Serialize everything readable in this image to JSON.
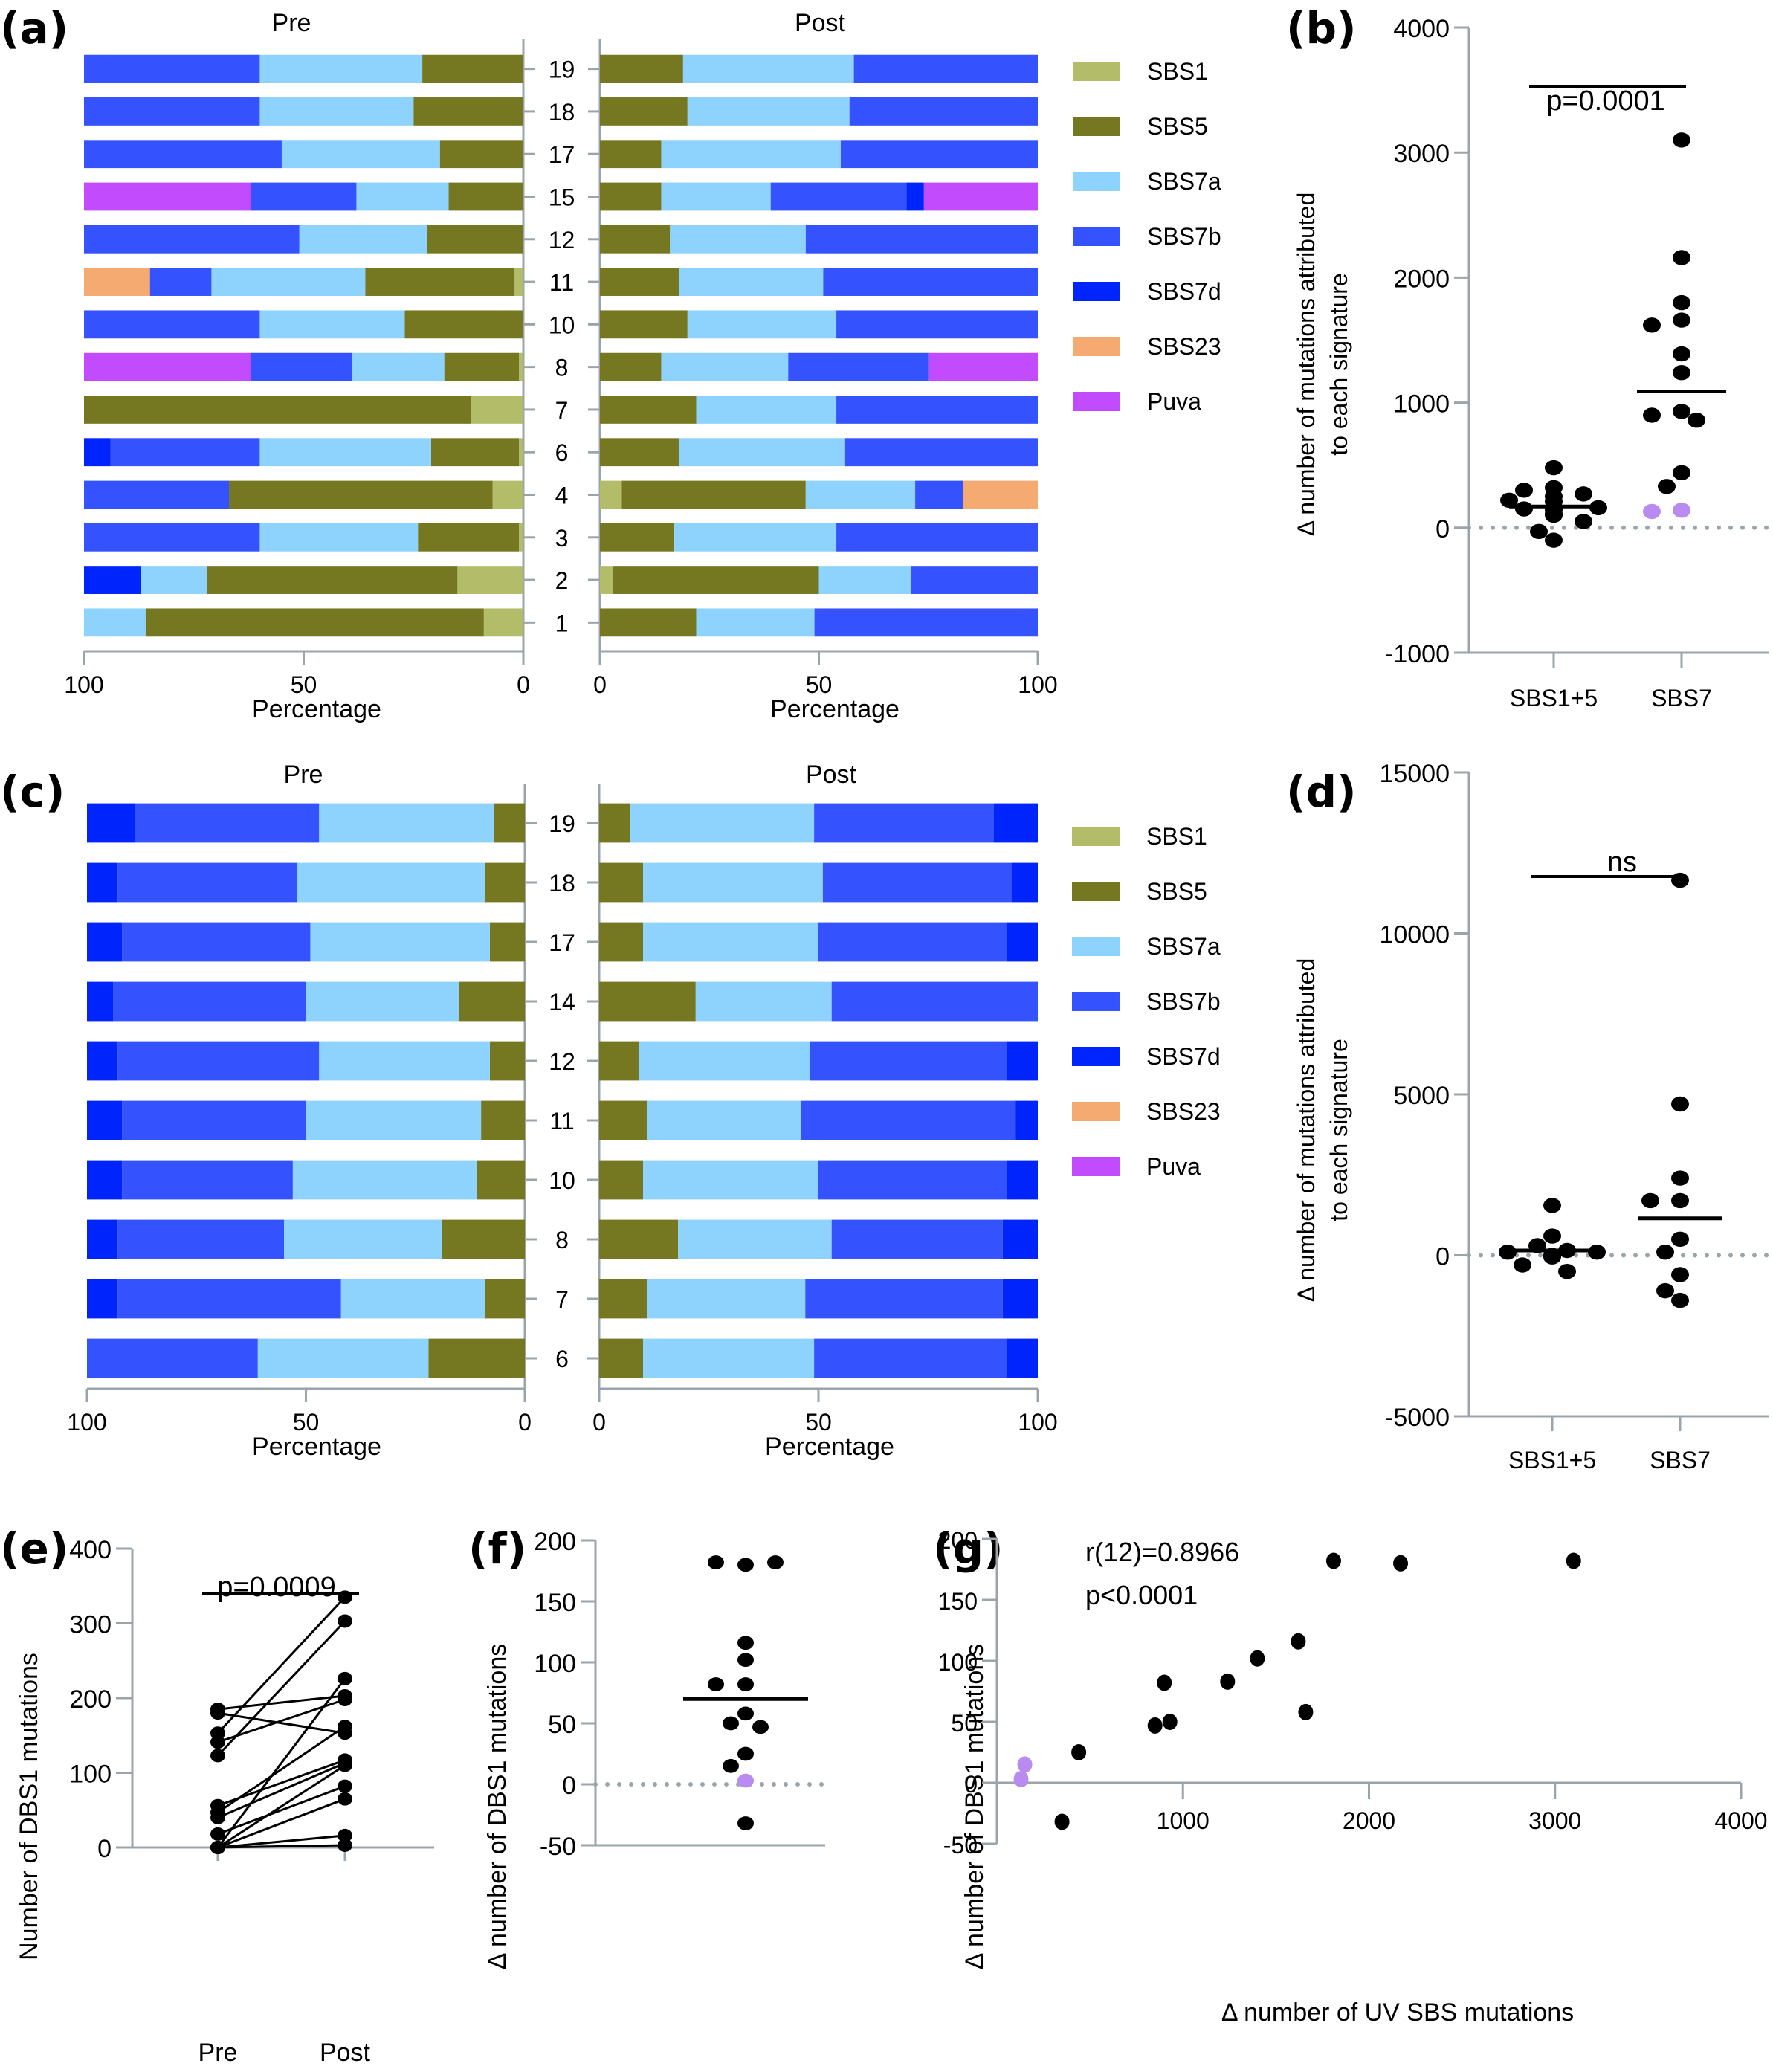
{
  "figure": {
    "panel_labels": [
      "(a)",
      "(b)",
      "(c)",
      "(d)",
      "(e)",
      "(f)",
      "(g)"
    ]
  },
  "colors": {
    "SBS1": "#b3bd69",
    "SBS5": "#767821",
    "SBS7a": "#8dd3fd",
    "SBS7b": "#3453fe",
    "SBS7d": "#0025fc",
    "SBS23": "#f5aa72",
    "Puva": "#c24cfd",
    "axis": "#9aa5ab",
    "point": "#000000",
    "highlight_point": "#b98af0"
  },
  "chart_data": [
    {
      "id": "a",
      "type": "bar",
      "orientation": "horizontal-stacked",
      "title_left": "Pre",
      "title_right": "Post",
      "xlabel": "Percentage",
      "xlim": [
        0,
        100
      ],
      "xticks_left": [
        "100",
        "50",
        "0"
      ],
      "xticks_right": [
        "0",
        "50",
        "100"
      ],
      "legend": [
        "SBS1",
        "SBS5",
        "SBS7a",
        "SBS7b",
        "SBS7d",
        "SBS23",
        "Puva"
      ],
      "legend_position": "right",
      "categories": [
        "19",
        "18",
        "17",
        "15",
        "12",
        "11",
        "10",
        "8",
        "7",
        "6",
        "4",
        "3",
        "2",
        "1"
      ],
      "pre": [
        {
          "SBS5": 23,
          "SBS7a": 37,
          "SBS7b": 40
        },
        {
          "SBS5": 25,
          "SBS7a": 35,
          "SBS7b": 40
        },
        {
          "SBS5": 19,
          "SBS7a": 36,
          "SBS7b": 45
        },
        {
          "SBS5": 17,
          "SBS7a": 21,
          "SBS7b": 24,
          "Puva": 38
        },
        {
          "SBS5": 22,
          "SBS7a": 29,
          "SBS7b": 49
        },
        {
          "SBS1": 2,
          "SBS5": 34,
          "SBS7a": 35,
          "SBS7b": 14,
          "SBS23": 15
        },
        {
          "SBS5": 27,
          "SBS7a": 33,
          "SBS7b": 40
        },
        {
          "SBS1": 1,
          "SBS5": 17,
          "SBS7a": 21,
          "SBS7b": 23,
          "Puva": 38
        },
        {
          "SBS1": 12,
          "SBS5": 88
        },
        {
          "SBS1": 1,
          "SBS5": 20,
          "SBS7a": 39,
          "SBS7b": 34,
          "SBS7d": 6
        },
        {
          "SBS1": 7,
          "SBS5": 60,
          "SBS7b": 33
        },
        {
          "SBS1": 1,
          "SBS5": 23,
          "SBS7a": 36,
          "SBS7b": 40
        },
        {
          "SBS1": 15,
          "SBS5": 57,
          "SBS7a": 15,
          "SBS7d": 13
        },
        {
          "SBS1": 9,
          "SBS5": 77,
          "SBS7a": 14
        }
      ],
      "post": [
        {
          "SBS5": 19,
          "SBS7a": 39,
          "SBS7b": 42
        },
        {
          "SBS5": 20,
          "SBS7a": 37,
          "SBS7b": 43
        },
        {
          "SBS5": 14,
          "SBS7a": 41,
          "SBS7b": 45
        },
        {
          "SBS5": 14,
          "SBS7a": 25,
          "SBS7b": 31,
          "SBS7d": 4,
          "Puva": 26
        },
        {
          "SBS5": 16,
          "SBS7a": 31,
          "SBS7b": 53
        },
        {
          "SBS5": 18,
          "SBS7a": 33,
          "SBS7b": 49
        },
        {
          "SBS5": 20,
          "SBS7a": 34,
          "SBS7b": 46
        },
        {
          "SBS5": 14,
          "SBS7a": 29,
          "SBS7b": 32,
          "Puva": 25
        },
        {
          "SBS5": 22,
          "SBS7a": 32,
          "SBS7b": 46
        },
        {
          "SBS5": 18,
          "SBS7a": 38,
          "SBS7b": 44
        },
        {
          "SBS1": 5,
          "SBS5": 42,
          "SBS7a": 25,
          "SBS7b": 11,
          "SBS23": 17
        },
        {
          "SBS5": 17,
          "SBS7a": 37,
          "SBS7b": 46
        },
        {
          "SBS1": 3,
          "SBS5": 47,
          "SBS7a": 21,
          "SBS7b": 29
        },
        {
          "SBS5": 22,
          "SBS7a": 27,
          "SBS7b": 51
        }
      ]
    },
    {
      "id": "b",
      "type": "scatter",
      "subtype": "dot-plot-with-mean",
      "ylabel": "Δ number of mutations attributed to each signature",
      "ylabel_lines": [
        "Δ number of mutations attributed",
        "to each signature"
      ],
      "ylim": [
        -1000,
        4000
      ],
      "yticks": [
        -1000,
        0,
        1000,
        2000,
        3000,
        4000
      ],
      "categories": [
        "SBS1+5",
        "SBS7"
      ],
      "reference_line": 0,
      "significance": {
        "text": "p=0.0001"
      },
      "series": [
        {
          "name": "SBS1+5",
          "values": [
            480,
            320,
            300,
            270,
            250,
            220,
            210,
            160,
            160,
            150,
            140,
            110,
            100,
            50,
            -30,
            -100
          ],
          "highlight": [],
          "mean": 170
        },
        {
          "name": "SBS7",
          "values": [
            3100,
            2160,
            1800,
            1660,
            1620,
            1390,
            1240,
            930,
            900,
            860,
            440,
            330,
            140,
            130
          ],
          "highlight": [
            140,
            130
          ],
          "mean": 1090
        }
      ]
    },
    {
      "id": "c",
      "type": "bar",
      "orientation": "horizontal-stacked",
      "title_left": "Pre",
      "title_right": "Post",
      "xlabel": "Percentage",
      "xlim": [
        0,
        100
      ],
      "xticks_left": [
        "100",
        "50",
        "0"
      ],
      "xticks_right": [
        "0",
        "50",
        "100"
      ],
      "legend": [
        "SBS1",
        "SBS5",
        "SBS7a",
        "SBS7b",
        "SBS7d",
        "SBS23",
        "Puva"
      ],
      "legend_position": "right",
      "categories": [
        "19",
        "18",
        "17",
        "14",
        "12",
        "11",
        "10",
        "8",
        "7",
        "6"
      ],
      "pre": [
        {
          "SBS5": 7,
          "SBS7a": 40,
          "SBS7b": 42,
          "SBS7d": 11
        },
        {
          "SBS5": 9,
          "SBS7a": 43,
          "SBS7b": 41,
          "SBS7d": 7
        },
        {
          "SBS5": 8,
          "SBS7a": 41,
          "SBS7b": 43,
          "SBS7d": 8
        },
        {
          "SBS5": 15,
          "SBS7a": 35,
          "SBS7b": 44,
          "SBS7d": 6
        },
        {
          "SBS5": 8,
          "SBS7a": 39,
          "SBS7b": 46,
          "SBS7d": 7
        },
        {
          "SBS5": 10,
          "SBS7a": 40,
          "SBS7b": 42,
          "SBS7d": 8
        },
        {
          "SBS5": 11,
          "SBS7a": 42,
          "SBS7b": 39,
          "SBS7d": 8
        },
        {
          "SBS5": 19,
          "SBS7a": 36,
          "SBS7b": 38,
          "SBS7d": 7
        },
        {
          "SBS5": 9,
          "SBS7a": 33,
          "SBS7b": 51,
          "SBS7d": 7
        },
        {
          "SBS5": 22,
          "SBS7a": 39,
          "SBS7b": 39
        }
      ],
      "post": [
        {
          "SBS5": 7,
          "SBS7a": 42,
          "SBS7b": 41,
          "SBS7d": 10
        },
        {
          "SBS5": 10,
          "SBS7a": 41,
          "SBS7b": 43,
          "SBS7d": 6
        },
        {
          "SBS5": 10,
          "SBS7a": 40,
          "SBS7b": 43,
          "SBS7d": 7
        },
        {
          "SBS5": 22,
          "SBS7a": 31,
          "SBS7b": 47
        },
        {
          "SBS5": 9,
          "SBS7a": 39,
          "SBS7b": 45,
          "SBS7d": 7
        },
        {
          "SBS5": 11,
          "SBS7a": 35,
          "SBS7b": 49,
          "SBS7d": 5
        },
        {
          "SBS5": 10,
          "SBS7a": 40,
          "SBS7b": 43,
          "SBS7d": 7
        },
        {
          "SBS5": 18,
          "SBS7a": 35,
          "SBS7b": 39,
          "SBS7d": 8
        },
        {
          "SBS5": 11,
          "SBS7a": 36,
          "SBS7b": 45,
          "SBS7d": 8
        },
        {
          "SBS5": 10,
          "SBS7a": 39,
          "SBS7b": 44,
          "SBS7d": 7
        }
      ]
    },
    {
      "id": "d",
      "type": "scatter",
      "subtype": "dot-plot-with-mean",
      "ylabel": "Δ number of mutations attributed to each signature",
      "ylabel_lines": [
        "Δ number of mutations attributed",
        "to each signature"
      ],
      "ylim": [
        -5000,
        15000
      ],
      "yticks": [
        -5000,
        0,
        5000,
        10000,
        15000
      ],
      "categories": [
        "SBS1+5",
        "SBS7"
      ],
      "reference_line": 0,
      "significance": {
        "text": "ns"
      },
      "series": [
        {
          "name": "SBS1+5",
          "values": [
            1550,
            600,
            300,
            150,
            100,
            100,
            0,
            -50,
            -300,
            -500
          ],
          "highlight": [],
          "mean": 150
        },
        {
          "name": "SBS7",
          "values": [
            11650,
            4700,
            2400,
            1700,
            1700,
            500,
            100,
            -1400,
            -600,
            -1100
          ],
          "highlight": [],
          "mean": 1150
        }
      ]
    },
    {
      "id": "e",
      "type": "line",
      "subtype": "paired-before-after",
      "ylabel": "Number of DBS1 mutations",
      "ylim": [
        0,
        400
      ],
      "yticks": [
        0,
        100,
        200,
        300,
        400
      ],
      "categories": [
        "Pre",
        "Post"
      ],
      "significance": {
        "text": "p=0.0009"
      },
      "pairs": [
        [
          153,
          335
        ],
        [
          123,
          303
        ],
        [
          185,
          203
        ],
        [
          141,
          198
        ],
        [
          180,
          153
        ],
        [
          0,
          226
        ],
        [
          47,
          162
        ],
        [
          56,
          117
        ],
        [
          40,
          113
        ],
        [
          0,
          110
        ],
        [
          18,
          82
        ],
        [
          0,
          65
        ],
        [
          0,
          16
        ],
        [
          0,
          3
        ]
      ]
    },
    {
      "id": "f",
      "type": "scatter",
      "subtype": "dot-plot-with-mean",
      "ylabel": "Δ number of DBS1 mutations",
      "ylim": [
        -50,
        200
      ],
      "yticks": [
        -50,
        0,
        50,
        100,
        150,
        200
      ],
      "reference_line": 0,
      "series": [
        {
          "name": "DBS1",
          "values": [
            180,
            182,
            182,
            116,
            102,
            82,
            82,
            58,
            50,
            47,
            25,
            15,
            3,
            -32
          ],
          "highlight": [
            15,
            3
          ],
          "mean": 70
        }
      ]
    },
    {
      "id": "g",
      "type": "scatter",
      "xlabel": "Δ number of UV SBS mutations",
      "ylabel": "Δ number of DBS1 mutations",
      "xlim": [
        0,
        4000
      ],
      "ylim": [
        -50,
        200
      ],
      "xticks": [
        1000,
        2000,
        3000,
        4000
      ],
      "yticks": [
        -50,
        0,
        50,
        100,
        150,
        200
      ],
      "annotations": [
        "r(12)=0.8966",
        "p<0.0001"
      ],
      "points": [
        {
          "x": 1810,
          "y": 182
        },
        {
          "x": 2170,
          "y": 180
        },
        {
          "x": 3100,
          "y": 182
        },
        {
          "x": 1620,
          "y": 116
        },
        {
          "x": 1400,
          "y": 102
        },
        {
          "x": 1240,
          "y": 83
        },
        {
          "x": 900,
          "y": 82
        },
        {
          "x": 1660,
          "y": 58
        },
        {
          "x": 930,
          "y": 50
        },
        {
          "x": 850,
          "y": 47
        },
        {
          "x": 440,
          "y": 25
        },
        {
          "x": 350,
          "y": -32
        },
        {
          "x": 150,
          "y": 15,
          "highlight": true
        },
        {
          "x": 130,
          "y": 3,
          "highlight": true
        }
      ]
    }
  ]
}
